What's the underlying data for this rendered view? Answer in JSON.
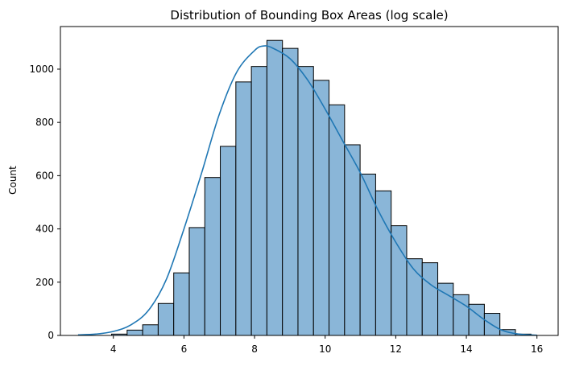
{
  "chart_data": {
    "type": "bar",
    "title": "Distribution of Bounding Box Areas (log scale)",
    "xlabel": "",
    "ylabel": "Count",
    "xlim": [
      2.5,
      16.6
    ],
    "ylim": [
      0,
      1160
    ],
    "xticks": [
      4,
      6,
      8,
      10,
      12,
      14,
      16
    ],
    "yticks": [
      0,
      200,
      400,
      600,
      800,
      1000
    ],
    "grid": false,
    "bar_color": "#8ab6d8",
    "bar_edge_color": "#000000",
    "kde_color": "#1f77b4",
    "bin_start": 3.95,
    "bin_width": 0.44,
    "values": [
      5,
      20,
      40,
      120,
      235,
      405,
      593,
      710,
      952,
      1010,
      1108,
      1078,
      1010,
      958,
      866,
      716,
      606,
      543,
      412,
      288,
      273,
      196,
      153,
      117,
      83,
      22,
      5
    ],
    "kde": {
      "x": [
        3.0,
        3.5,
        4.0,
        4.5,
        5.0,
        5.5,
        6.0,
        6.5,
        7.0,
        7.5,
        8.0,
        8.25,
        8.5,
        9.0,
        9.5,
        10.0,
        10.5,
        11.0,
        11.5,
        12.0,
        12.5,
        13.0,
        13.5,
        14.0,
        14.5,
        15.0,
        15.5,
        16.0
      ],
      "y": [
        2,
        5,
        15,
        40,
        95,
        210,
        400,
        610,
        830,
        990,
        1070,
        1087,
        1080,
        1040,
        960,
        850,
        730,
        610,
        470,
        350,
        250,
        190,
        150,
        110,
        60,
        20,
        5,
        1
      ]
    }
  }
}
